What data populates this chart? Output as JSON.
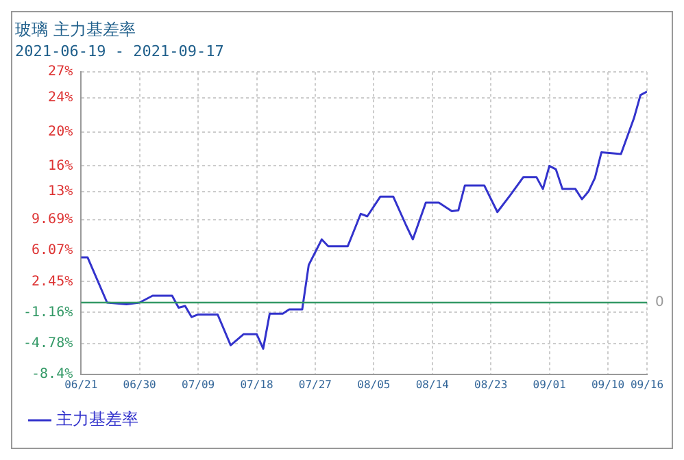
{
  "chart_data": {
    "type": "line",
    "title": "玻璃 主力基差率",
    "subtitle": "2021-06-19 - 2021-09-17",
    "x": [
      "2021-06-21",
      "2021-06-22",
      "2021-06-25",
      "2021-06-28",
      "2021-06-30",
      "2021-07-02",
      "2021-07-05",
      "2021-07-06",
      "2021-07-07",
      "2021-07-08",
      "2021-07-09",
      "2021-07-12",
      "2021-07-14",
      "2021-07-16",
      "2021-07-18",
      "2021-07-19",
      "2021-07-20",
      "2021-07-22",
      "2021-07-23",
      "2021-07-25",
      "2021-07-26",
      "2021-07-28",
      "2021-07-29",
      "2021-08-01",
      "2021-08-03",
      "2021-08-04",
      "2021-08-06",
      "2021-08-08",
      "2021-08-10",
      "2021-08-11",
      "2021-08-13",
      "2021-08-15",
      "2021-08-17",
      "2021-08-18",
      "2021-08-19",
      "2021-08-22",
      "2021-08-24",
      "2021-08-26",
      "2021-08-28",
      "2021-08-30",
      "2021-08-31",
      "2021-09-01",
      "2021-09-02",
      "2021-09-03",
      "2021-09-05",
      "2021-09-06",
      "2021-09-07",
      "2021-09-08",
      "2021-09-09",
      "2021-09-12",
      "2021-09-14",
      "2021-09-15",
      "2021-09-16"
    ],
    "series": [
      {
        "name": "主力基差率",
        "color": "#3333cc",
        "values": [
          5.3,
          5.3,
          0,
          -0.2,
          0,
          0.8,
          0.8,
          -0.6,
          -0.4,
          -1.7,
          -1.4,
          -1.4,
          -5.0,
          -3.7,
          -3.7,
          -5.4,
          -1.3,
          -1.3,
          -0.8,
          -0.8,
          4.4,
          7.4,
          6.6,
          6.6,
          10.4,
          10.1,
          12.4,
          12.4,
          9.0,
          7.4,
          11.7,
          11.7,
          10.7,
          10.8,
          13.7,
          13.7,
          10.6,
          12.6,
          14.7,
          14.7,
          13.3,
          16.0,
          15.6,
          13.3,
          13.3,
          12.1,
          13.0,
          14.6,
          17.6,
          17.4,
          21.6,
          24.3,
          24.7
        ]
      }
    ],
    "xlim": [
      "2021-06-21",
      "2021-09-16"
    ],
    "xticks": [
      {
        "value": "2021-06-21",
        "label": "06/21"
      },
      {
        "value": "2021-06-30",
        "label": "06/30"
      },
      {
        "value": "2021-07-09",
        "label": "07/09"
      },
      {
        "value": "2021-07-18",
        "label": "07/18"
      },
      {
        "value": "2021-07-27",
        "label": "07/27"
      },
      {
        "value": "2021-08-05",
        "label": "08/05"
      },
      {
        "value": "2021-08-14",
        "label": "08/14"
      },
      {
        "value": "2021-08-23",
        "label": "08/23"
      },
      {
        "value": "2021-09-01",
        "label": "09/01"
      },
      {
        "value": "2021-09-10",
        "label": "09/10"
      },
      {
        "value": "2021-09-16",
        "label": "09/16"
      }
    ],
    "ylim": [
      -8.4,
      27
    ],
    "yticks": [
      {
        "value": -8.4,
        "label": "-8.4%"
      },
      {
        "value": -4.78,
        "label": "-4.78%"
      },
      {
        "value": -1.16,
        "label": "-1.16%"
      },
      {
        "value": 2.45,
        "label": "2.45%"
      },
      {
        "value": 6.07,
        "label": "6.07%"
      },
      {
        "value": 9.69,
        "label": "9.69%"
      },
      {
        "value": 13,
        "label": "13%"
      },
      {
        "value": 16,
        "label": "16%"
      },
      {
        "value": 20,
        "label": "20%"
      },
      {
        "value": 24,
        "label": "24%"
      },
      {
        "value": 27,
        "label": "27%"
      }
    ],
    "ref_lines": [
      {
        "axis": "y",
        "value": 0,
        "label": "0",
        "color": "#339966"
      }
    ],
    "grid": true,
    "legend": "bottom left",
    "marker": "none",
    "line_style": "solid"
  }
}
